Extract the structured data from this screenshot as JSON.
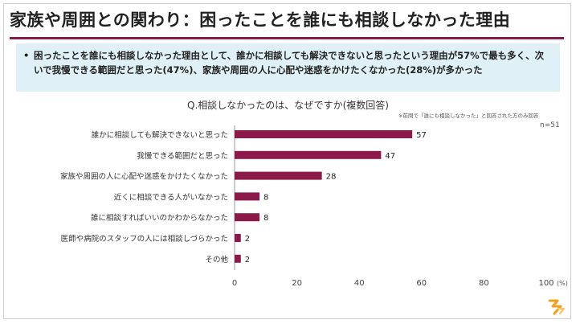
{
  "page": {
    "title": "家族や周囲との関わり：困ったことを誰にも相談しなかった理由",
    "summary_bullet": "•",
    "summary": "困ったことを誰にも相談しなかった理由として、誰かに相談しても解決できないと思ったという理由が57%で最も多く、次いで我慢できる範囲だと思った(47%)、家族や周囲の人に心配や迷惑をかけたくなかった(28%)が多かった",
    "question": "Q.相談しなかったのは、なぜですか(複数回答)",
    "note": "※前問で「誰にも相談しなかった」と回答された方のみ回答",
    "n_label": "n=51",
    "unit_label": "(%)",
    "colors": {
      "bar": "#8b1a4a",
      "rule": "#8b1a4a",
      "summary_bg": "#dff0f7",
      "logo": "#f0a020"
    }
  },
  "chart_data": {
    "type": "bar",
    "orientation": "horizontal",
    "categories": [
      "誰かに相談しても解決できないと思った",
      "我慢できる範囲だと思った",
      "家族や周囲の人に心配や迷惑をかけたくなかった",
      "近くに相談できる人がいなかった",
      "誰に相談すればいいのかわからなかった",
      "医師や病院のスタッフの人には相談しづらかった",
      "その他"
    ],
    "values": [
      57,
      47,
      28,
      8,
      8,
      2,
      2
    ],
    "xlim": [
      0,
      100
    ],
    "xticks": [
      0,
      20,
      40,
      60,
      80,
      100
    ],
    "grid": false
  }
}
